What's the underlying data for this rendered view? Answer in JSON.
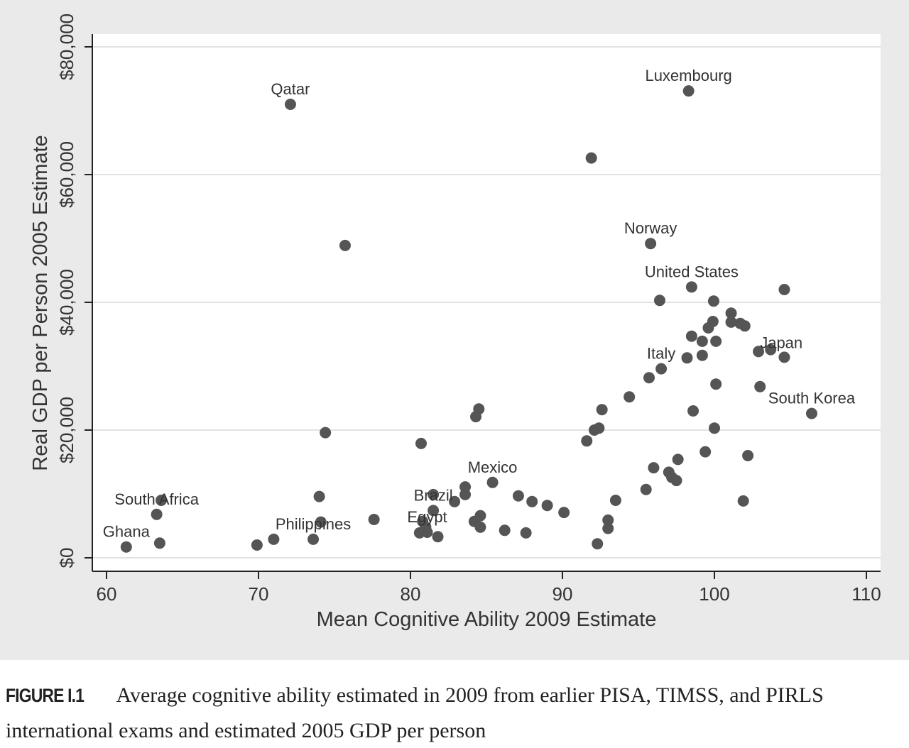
{
  "chart_data": {
    "type": "scatter",
    "title": "",
    "xlabel": "Mean Cognitive Ability 2009 Estimate",
    "ylabel": "Real GDP per Person 2005 Estimate",
    "xlim": [
      60,
      110
    ],
    "ylim": [
      0,
      80000
    ],
    "xticks": [
      60,
      70,
      80,
      90,
      100,
      110
    ],
    "yticks": [
      0,
      20000,
      40000,
      60000,
      80000
    ],
    "ytick_labels": [
      "$0",
      "$20,000",
      "$40,000",
      "$60,000",
      "$80,000"
    ],
    "grid": "horizontal",
    "point_color": "#555555",
    "points": [
      {
        "x": 72.1,
        "y": 71000,
        "label": "Qatar"
      },
      {
        "x": 98.3,
        "y": 73100,
        "label": "Luxembourg"
      },
      {
        "x": 91.9,
        "y": 62600
      },
      {
        "x": 75.7,
        "y": 48900
      },
      {
        "x": 95.8,
        "y": 49200,
        "label": "Norway"
      },
      {
        "x": 98.5,
        "y": 42400,
        "label": "United States"
      },
      {
        "x": 104.6,
        "y": 42000
      },
      {
        "x": 96.4,
        "y": 40300
      },
      {
        "x": 99.95,
        "y": 40200
      },
      {
        "x": 101.1,
        "y": 38300
      },
      {
        "x": 99.9,
        "y": 37000
      },
      {
        "x": 101.1,
        "y": 36900
      },
      {
        "x": 101.7,
        "y": 36700
      },
      {
        "x": 102.0,
        "y": 36300
      },
      {
        "x": 99.6,
        "y": 36000
      },
      {
        "x": 98.5,
        "y": 34700
      },
      {
        "x": 99.2,
        "y": 33900
      },
      {
        "x": 100.1,
        "y": 33900
      },
      {
        "x": 102.9,
        "y": 32300
      },
      {
        "x": 103.7,
        "y": 32600,
        "label": "Japan"
      },
      {
        "x": 104.6,
        "y": 31400
      },
      {
        "x": 98.2,
        "y": 31300
      },
      {
        "x": 99.2,
        "y": 31700
      },
      {
        "x": 96.5,
        "y": 29600,
        "label": "Italy"
      },
      {
        "x": 95.7,
        "y": 28200
      },
      {
        "x": 100.1,
        "y": 27200
      },
      {
        "x": 103.0,
        "y": 26800
      },
      {
        "x": 94.4,
        "y": 25200
      },
      {
        "x": 106.4,
        "y": 22600,
        "label": "South Korea"
      },
      {
        "x": 98.6,
        "y": 23000
      },
      {
        "x": 92.6,
        "y": 23200
      },
      {
        "x": 84.5,
        "y": 23300
      },
      {
        "x": 84.3,
        "y": 22100
      },
      {
        "x": 92.4,
        "y": 20300
      },
      {
        "x": 92.1,
        "y": 20000
      },
      {
        "x": 100.0,
        "y": 20300
      },
      {
        "x": 74.4,
        "y": 19600
      },
      {
        "x": 91.6,
        "y": 18300
      },
      {
        "x": 80.7,
        "y": 17900
      },
      {
        "x": 99.4,
        "y": 16600
      },
      {
        "x": 102.2,
        "y": 16000
      },
      {
        "x": 97.6,
        "y": 15400
      },
      {
        "x": 96.0,
        "y": 14100
      },
      {
        "x": 97.0,
        "y": 13400
      },
      {
        "x": 97.2,
        "y": 12600
      },
      {
        "x": 97.5,
        "y": 12100
      },
      {
        "x": 85.4,
        "y": 11800,
        "label": "Mexico"
      },
      {
        "x": 83.6,
        "y": 11100
      },
      {
        "x": 83.6,
        "y": 9900
      },
      {
        "x": 95.5,
        "y": 10700
      },
      {
        "x": 74.0,
        "y": 9600
      },
      {
        "x": 87.1,
        "y": 9700
      },
      {
        "x": 81.5,
        "y": 9900
      },
      {
        "x": 82.9,
        "y": 8800
      },
      {
        "x": 88.0,
        "y": 8800
      },
      {
        "x": 93.5,
        "y": 9000
      },
      {
        "x": 101.9,
        "y": 8900
      },
      {
        "x": 89.0,
        "y": 8200
      },
      {
        "x": 63.6,
        "y": 9000
      },
      {
        "x": 63.3,
        "y": 6800,
        "label": "South Africa"
      },
      {
        "x": 81.5,
        "y": 7400,
        "label": "Brazil"
      },
      {
        "x": 90.1,
        "y": 7100
      },
      {
        "x": 84.6,
        "y": 6600
      },
      {
        "x": 84.2,
        "y": 5700
      },
      {
        "x": 77.6,
        "y": 6000
      },
      {
        "x": 74.1,
        "y": 5600
      },
      {
        "x": 80.8,
        "y": 5700
      },
      {
        "x": 81.0,
        "y": 4800
      },
      {
        "x": 93.0,
        "y": 5900
      },
      {
        "x": 93.0,
        "y": 4600
      },
      {
        "x": 84.6,
        "y": 4800
      },
      {
        "x": 86.2,
        "y": 4300
      },
      {
        "x": 81.1,
        "y": 4000,
        "label": "Egypt"
      },
      {
        "x": 80.6,
        "y": 3900
      },
      {
        "x": 87.6,
        "y": 3900
      },
      {
        "x": 81.8,
        "y": 3300
      },
      {
        "x": 73.6,
        "y": 2900,
        "label": "Philippines"
      },
      {
        "x": 71.0,
        "y": 2900
      },
      {
        "x": 69.9,
        "y": 2000
      },
      {
        "x": 63.5,
        "y": 2300
      },
      {
        "x": 61.3,
        "y": 1700,
        "label": "Ghana"
      },
      {
        "x": 92.3,
        "y": 2200
      }
    ]
  },
  "caption": {
    "figure_label": "FIGURE I.1",
    "text": "Average cognitive ability estimated in 2009 from earlier PISA, TIMSS, and PIRLS international exams and estimated 2005 GDP per person"
  }
}
